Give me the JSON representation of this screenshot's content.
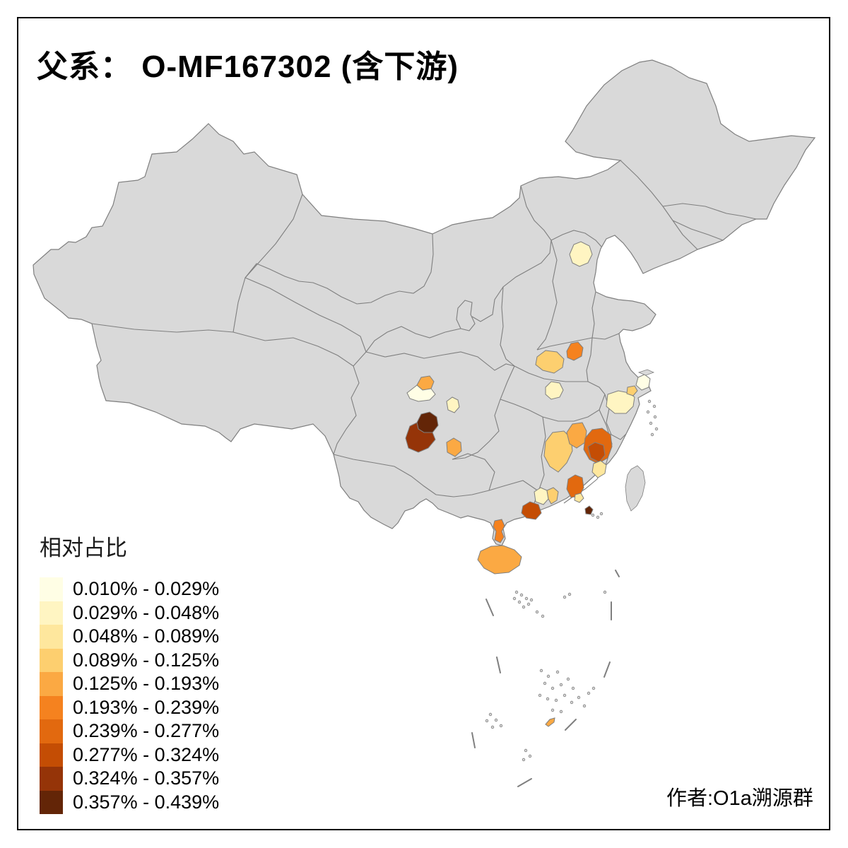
{
  "title": "父系：  O-MF167302 (含下游)",
  "attribution": "作者:O1a溯源群",
  "legend": {
    "title": "相对占比",
    "classes": [
      {
        "label": "0.010% - 0.029%",
        "color": "#FFFEE5"
      },
      {
        "label": "0.029% - 0.048%",
        "color": "#FFF5C2"
      },
      {
        "label": "0.048% - 0.089%",
        "color": "#FEE79D"
      },
      {
        "label": "0.089% - 0.125%",
        "color": "#FDCF6F"
      },
      {
        "label": "0.125% - 0.193%",
        "color": "#FBA943"
      },
      {
        "label": "0.193% - 0.239%",
        "color": "#F5821F"
      },
      {
        "label": "0.239% - 0.277%",
        "color": "#E2690F"
      },
      {
        "label": "0.277% - 0.324%",
        "color": "#C44D04"
      },
      {
        "label": "0.324% - 0.357%",
        "color": "#953408"
      },
      {
        "label": "0.357% - 0.439%",
        "color": "#632507"
      }
    ]
  },
  "map": {
    "background": "#FFFFFF",
    "land_fill": "#D9D9D9",
    "border_color": "#7F7F7F",
    "frame_color": "#000000",
    "regions": [
      {
        "id": "beijing",
        "class": 2
      },
      {
        "id": "henan-west",
        "class": 4
      },
      {
        "id": "henan-east",
        "class": 6
      },
      {
        "id": "hubei",
        "class": 2
      },
      {
        "id": "zhejiang-north",
        "class": 2
      },
      {
        "id": "shanghai",
        "class": 1
      },
      {
        "id": "jiaxing",
        "class": 4
      },
      {
        "id": "sichuan-northeast",
        "class": 5
      },
      {
        "id": "chengdu-plain",
        "class": 1
      },
      {
        "id": "sichuan-east",
        "class": 2
      },
      {
        "id": "sichuan-darkest",
        "class": 10
      },
      {
        "id": "sichuan-dark",
        "class": 9
      },
      {
        "id": "sichuan-south",
        "class": 5
      },
      {
        "id": "jiangxi-west",
        "class": 4
      },
      {
        "id": "jiangxi-northeast",
        "class": 5
      },
      {
        "id": "fujian-northwest",
        "class": 7
      },
      {
        "id": "fujian-core",
        "class": 8
      },
      {
        "id": "fujian-south",
        "class": 3
      },
      {
        "id": "guangdong-northeast",
        "class": 7
      },
      {
        "id": "guangdong-east-small",
        "class": 3
      },
      {
        "id": "guangdong-central-light",
        "class": 2
      },
      {
        "id": "guangdong-central",
        "class": 4
      },
      {
        "id": "guangdong-west",
        "class": 8
      },
      {
        "id": "pearl-delta",
        "class": 10
      },
      {
        "id": "zhanjiang-leizhou",
        "class": 6
      },
      {
        "id": "hainan",
        "class": 5
      },
      {
        "id": "sansha-islet",
        "class": 5
      }
    ]
  }
}
